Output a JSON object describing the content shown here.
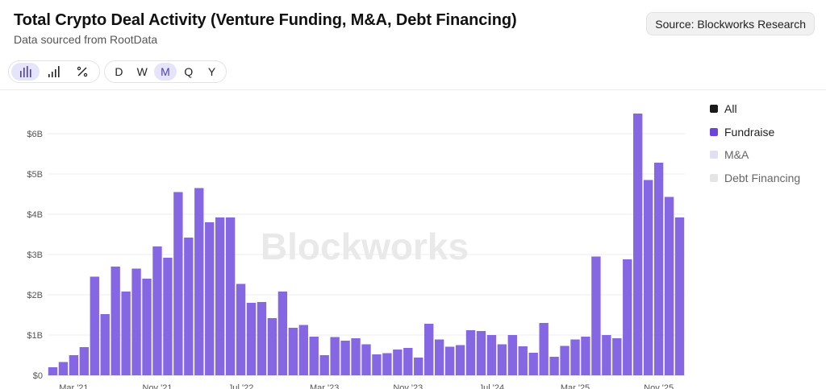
{
  "header": {
    "title": "Total Crypto Deal Activity (Venture Funding, M&A, Debt Financing)",
    "subtitle": "Data sourced from RootData",
    "source_label": "Source: Blockworks Research"
  },
  "toolbar": {
    "chart_types": [
      {
        "icon": "bar-chart-icon",
        "active": true
      },
      {
        "icon": "stacked-bar-chart-icon",
        "active": false
      },
      {
        "icon": "percent-icon",
        "active": false
      }
    ],
    "periods": [
      {
        "label": "D",
        "active": false
      },
      {
        "label": "W",
        "active": false
      },
      {
        "label": "M",
        "active": true
      },
      {
        "label": "Q",
        "active": false
      },
      {
        "label": "Y",
        "active": false
      }
    ]
  },
  "legend": [
    {
      "label": "All",
      "color": "#1a1a1a",
      "muted": false
    },
    {
      "label": "Fundraise",
      "color": "#6a45d8",
      "muted": false
    },
    {
      "label": "M&A",
      "color": "#dfe0f2",
      "muted": true
    },
    {
      "label": "Debt Financing",
      "color": "#e5e5e6",
      "muted": true
    }
  ],
  "watermark": "Blockworks",
  "chart_data": {
    "type": "bar",
    "title": "Total Crypto Deal Activity (Venture Funding, M&A, Debt Financing)",
    "subtitle": "Data sourced from RootData",
    "bar_color": "#8566e3",
    "grid": true,
    "legend_position": "right",
    "ylim": [
      0,
      6.5
    ],
    "yticks": [
      {
        "value": 0,
        "label": "$0"
      },
      {
        "value": 1,
        "label": "$1B"
      },
      {
        "value": 2,
        "label": "$2B"
      },
      {
        "value": 3,
        "label": "$3B"
      },
      {
        "value": 4,
        "label": "$4B"
      },
      {
        "value": 5,
        "label": "$5B"
      },
      {
        "value": 6,
        "label": "$6B"
      }
    ],
    "xticks": [
      {
        "index": 2,
        "label": "Mar '21"
      },
      {
        "index": 10,
        "label": "Nov '21"
      },
      {
        "index": 18,
        "label": "Jul '22"
      },
      {
        "index": 26,
        "label": "Mar '23"
      },
      {
        "index": 34,
        "label": "Nov '23"
      },
      {
        "index": 42,
        "label": "Jul '24"
      },
      {
        "index": 50,
        "label": "Mar '25"
      },
      {
        "index": 58,
        "label": "Nov '25"
      }
    ],
    "series": [
      {
        "name": "Fundraise",
        "values": [
          0.2,
          0.33,
          0.5,
          0.7,
          2.45,
          1.52,
          2.7,
          2.08,
          2.65,
          2.4,
          3.2,
          2.92,
          4.55,
          3.42,
          4.65,
          3.8,
          3.92,
          3.92,
          2.27,
          1.8,
          1.82,
          1.42,
          2.08,
          1.18,
          1.25,
          0.96,
          0.5,
          0.95,
          0.86,
          0.92,
          0.77,
          0.52,
          0.55,
          0.64,
          0.68,
          0.44,
          1.28,
          0.89,
          0.71,
          0.75,
          1.12,
          1.1,
          1.0,
          0.77,
          1.0,
          0.72,
          0.56,
          1.3,
          0.46,
          0.73,
          0.89,
          0.96,
          2.95,
          1.0,
          0.92,
          2.88,
          6.52,
          4.85,
          5.28,
          4.43,
          3.92
        ]
      }
    ]
  }
}
